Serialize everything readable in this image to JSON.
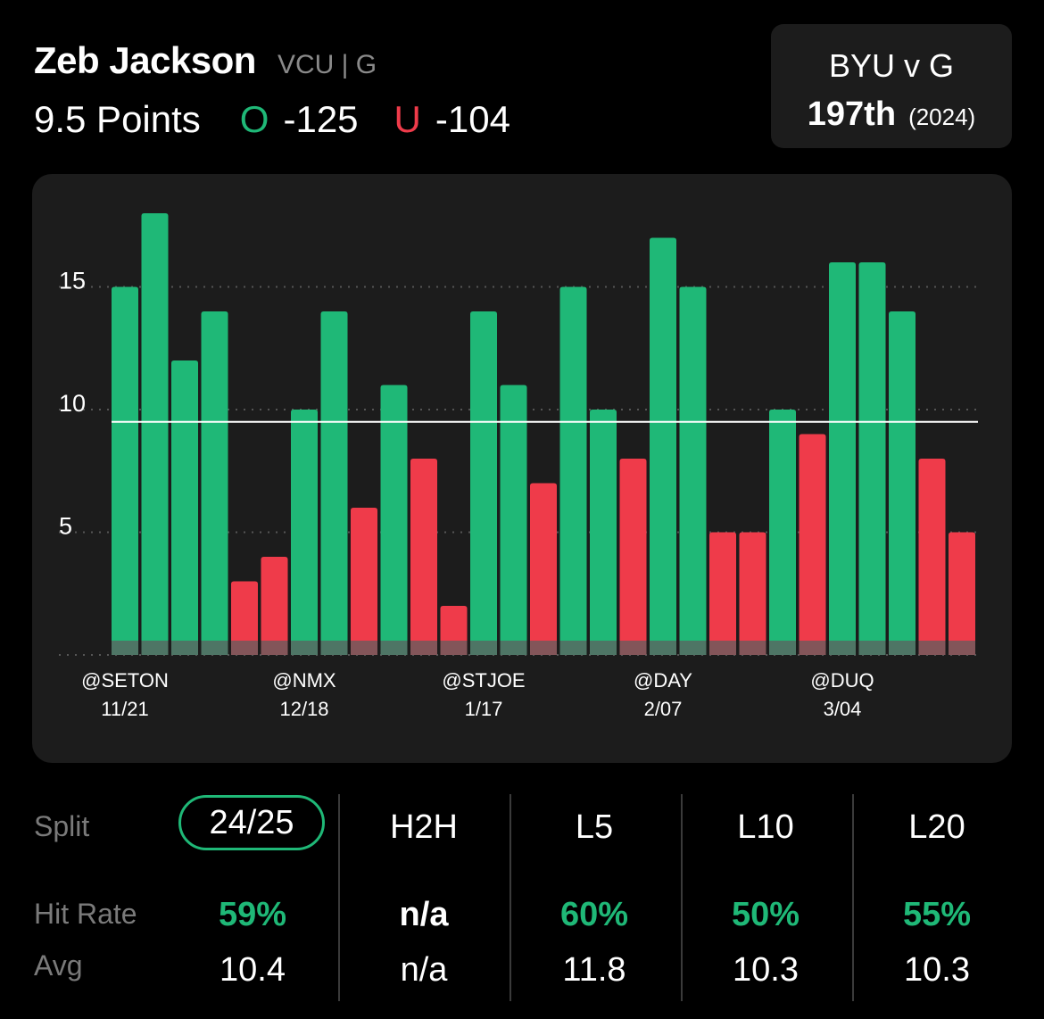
{
  "player": {
    "name": "Zeb Jackson",
    "team_pos": "VCU | G"
  },
  "line": {
    "prop": "9.5 Points",
    "over_label": "O",
    "over_odds": "-125",
    "under_label": "U",
    "under_odds": "-104"
  },
  "matchup": {
    "title": "BYU v G",
    "rank": "197th",
    "season": "(2024)"
  },
  "colors": {
    "over": "#1fb877",
    "under": "#ef3b4a",
    "panel": "#1c1c1c",
    "line": "#ffffff"
  },
  "chart_data": {
    "type": "bar",
    "ylim": [
      0,
      18
    ],
    "y_ticks": [
      5,
      10,
      15
    ],
    "grid": true,
    "threshold": 9.5,
    "x_labels": [
      {
        "opp": "@SETON",
        "date": "11/21",
        "index": 0
      },
      {
        "opp": "@NMX",
        "date": "12/18",
        "index": 6
      },
      {
        "opp": "@STJOE",
        "date": "1/17",
        "index": 12
      },
      {
        "opp": "@DAY",
        "date": "2/07",
        "index": 18
      },
      {
        "opp": "@DUQ",
        "date": "3/04",
        "index": 24
      }
    ],
    "values": [
      15,
      18,
      12,
      14,
      3,
      4,
      10,
      14,
      6,
      11,
      8,
      2,
      14,
      11,
      7,
      15,
      10,
      8,
      17,
      15,
      5,
      5,
      10,
      9,
      16,
      16,
      14,
      8,
      5
    ]
  },
  "stats": {
    "split_label": "Split",
    "hit_label": "Hit Rate",
    "avg_label": "Avg",
    "columns": [
      {
        "head": "24/25",
        "hit": "59%",
        "avg": "10.4",
        "selected": true
      },
      {
        "head": "H2H",
        "hit": "n/a",
        "avg": "n/a"
      },
      {
        "head": "L5",
        "hit": "60%",
        "avg": "11.8"
      },
      {
        "head": "L10",
        "hit": "50%",
        "avg": "10.3"
      },
      {
        "head": "L20",
        "hit": "55%",
        "avg": "10.3"
      }
    ]
  }
}
